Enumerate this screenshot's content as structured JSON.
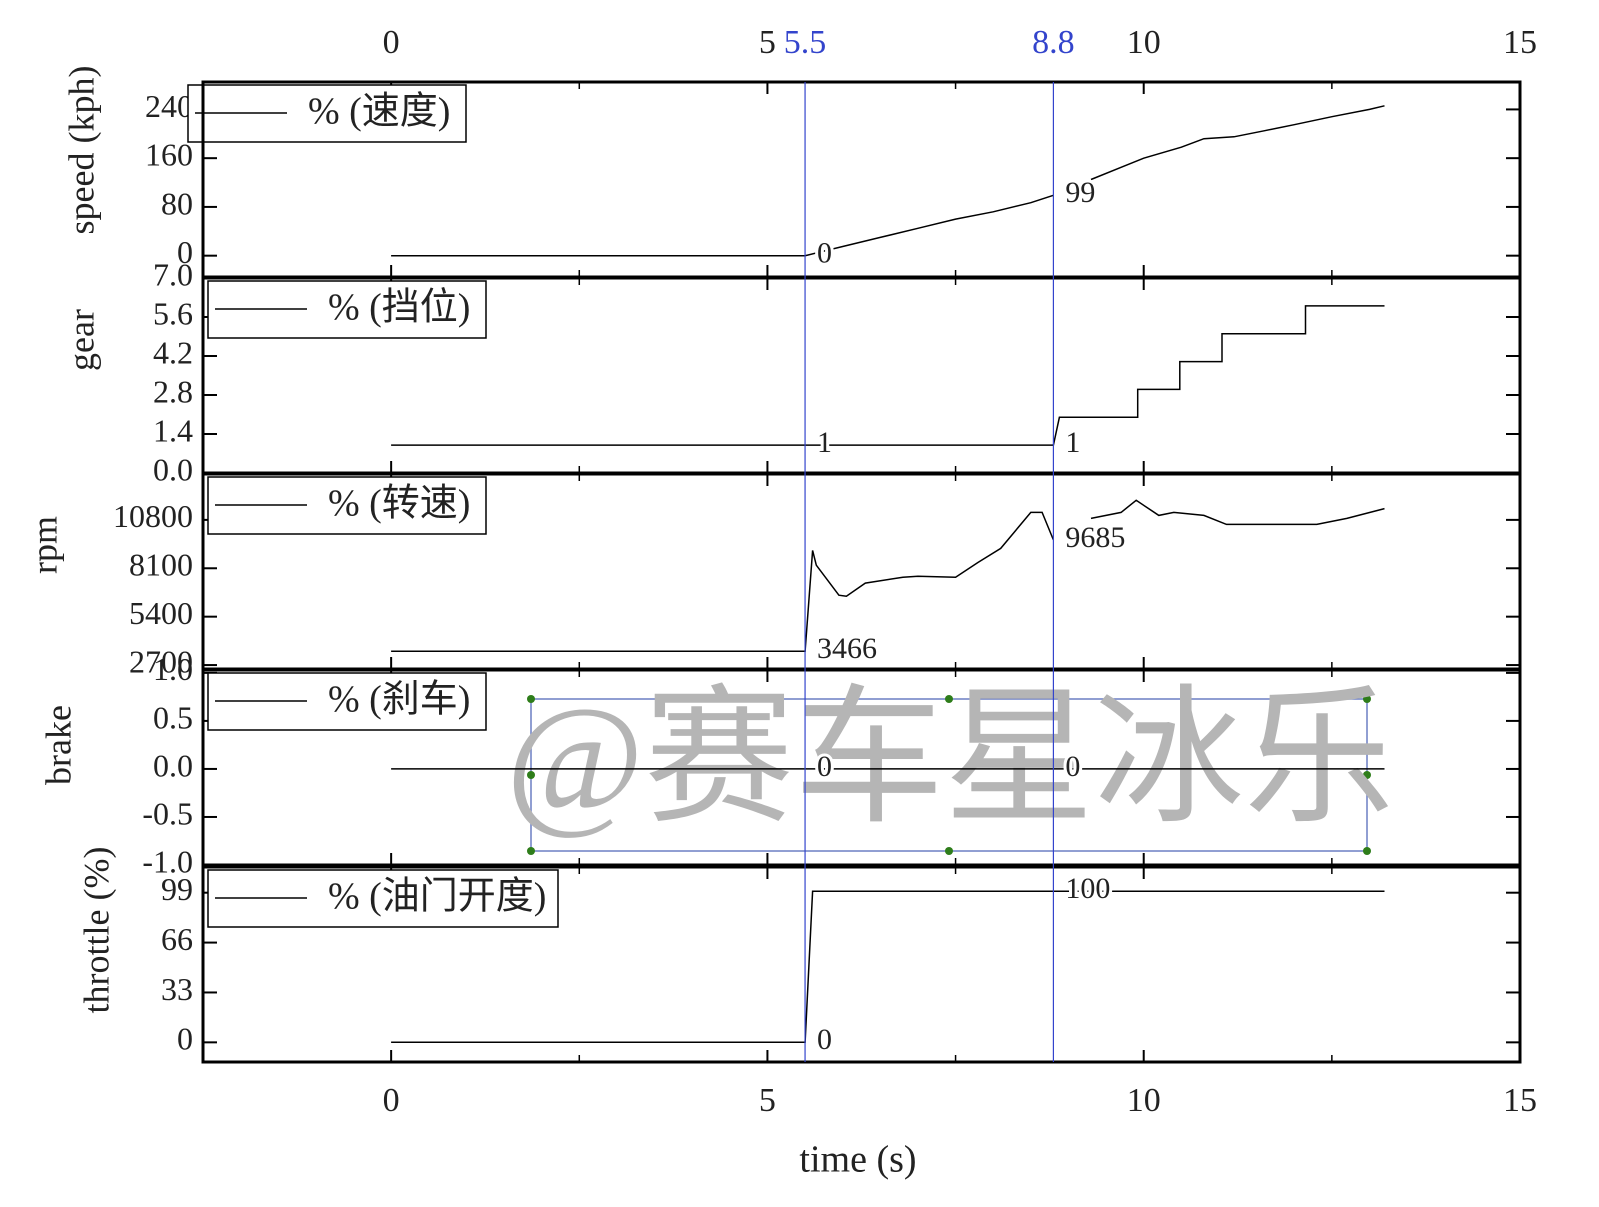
{
  "shared": {
    "xlabel": "time (s)",
    "xlim": [
      -2.5,
      15
    ],
    "xticks": [
      0,
      5,
      10,
      15
    ],
    "xminorticks": [
      -2.5,
      2.5,
      7.5,
      12.5
    ],
    "cursors": [
      5.5,
      8.8
    ],
    "cursor_color": "#3344cc"
  },
  "watermark": "@赛车星冰乐",
  "chart_data": [
    {
      "type": "line",
      "ylabel": "speed (kph)",
      "ylim": [
        -35,
        285
      ],
      "yticks": [
        0,
        80,
        160,
        240
      ],
      "x": [
        0,
        5.5,
        6,
        6.5,
        7,
        7.5,
        8,
        8.5,
        8.8,
        9.0,
        9.3,
        9.7,
        10,
        10.5,
        10.8,
        11.2,
        11.6,
        12,
        12.5,
        13,
        13.2
      ],
      "series": [
        {
          "name": "% (速度)",
          "color": "#000000",
          "values": [
            0,
            0,
            15,
            30,
            45,
            60,
            72,
            87,
            99,
            null,
            125,
            145,
            160,
            178,
            192,
            195,
            205,
            215,
            228,
            240,
            246
          ]
        }
      ],
      "cursor_labels": [
        0,
        99
      ]
    },
    {
      "type": "line",
      "ylabel": "gear",
      "ylim": [
        0,
        7
      ],
      "yticks": [
        {
          "value": 0,
          "label": "0.0"
        },
        1.4,
        2.8,
        4.2,
        5.6,
        {
          "value": 7,
          "label": "7.0"
        }
      ],
      "x": [
        0,
        5.5,
        8.8,
        8.88,
        9.92,
        9.92,
        10.48,
        10.48,
        11.04,
        11.04,
        12.15,
        12.15,
        13.2
      ],
      "series": [
        {
          "name": "% (挡位)",
          "color": "#000000",
          "values": [
            1,
            1,
            1,
            2,
            2,
            3,
            3,
            4,
            4,
            5,
            5,
            6,
            6
          ]
        }
      ],
      "cursor_labels": [
        1,
        1
      ]
    },
    {
      "type": "line",
      "ylabel": "rpm",
      "ylim": [
        2480,
        13360
      ],
      "yticks": [
        2700,
        5400,
        8100,
        10800
      ],
      "x": [
        0,
        5.5,
        5.6,
        5.65,
        5.95,
        6.05,
        6.3,
        6.8,
        7.0,
        7.5,
        7.8,
        8.1,
        8.5,
        8.65,
        8.8,
        9.0,
        9.3,
        9.7,
        9.9,
        10.2,
        10.4,
        10.8,
        11.1,
        12.3,
        12.7,
        13.2
      ],
      "series": [
        {
          "name": "% (转速)",
          "color": "#000000",
          "values": [
            3466,
            3466,
            9100,
            8270,
            6600,
            6540,
            7270,
            7600,
            7650,
            7600,
            8430,
            9210,
            11220,
            11220,
            9685,
            null,
            10880,
            11220,
            11890,
            11050,
            11220,
            11050,
            10550,
            10550,
            10880,
            11430
          ]
        }
      ],
      "cursor_labels": [
        3466,
        9685
      ]
    },
    {
      "type": "line",
      "ylabel": "brake",
      "ylim": [
        -1.0,
        1.03
      ],
      "yticks": [
        {
          "value": -1,
          "label": "-1.0"
        },
        -0.5,
        {
          "value": 0,
          "label": "0.0"
        },
        0.5,
        {
          "value": 1,
          "label": "1.0"
        }
      ],
      "x": [
        0,
        5.5,
        8.8,
        13.2
      ],
      "series": [
        {
          "name": "% (刹车)",
          "color": "#000000",
          "values": [
            0,
            0,
            0,
            0
          ]
        }
      ],
      "cursor_labels": [
        0,
        0
      ]
    },
    {
      "type": "line",
      "ylabel": "throttle (%)",
      "ylim": [
        -13,
        116
      ],
      "yticks": [
        0,
        33,
        66,
        99
      ],
      "x": [
        0,
        5.5,
        5.6,
        8.8,
        13.2
      ],
      "series": [
        {
          "name": "% (油门开度)",
          "color": "#000000",
          "values": [
            0,
            0,
            100,
            100,
            100
          ]
        }
      ],
      "cursor_labels": [
        0,
        100
      ]
    }
  ]
}
